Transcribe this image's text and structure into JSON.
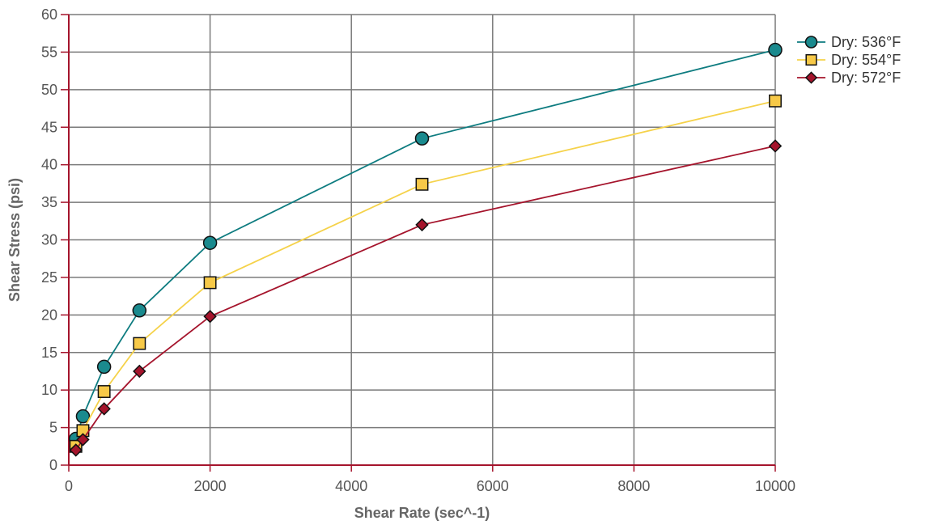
{
  "chart_data": {
    "type": "line",
    "xlabel": "Shear Rate (sec^-1)",
    "ylabel": "Shear Stress (psi)",
    "xlim": [
      0,
      10000
    ],
    "ylim": [
      0,
      60
    ],
    "xticks": [
      0,
      2000,
      4000,
      6000,
      8000,
      10000
    ],
    "yticks": [
      0,
      5,
      10,
      15,
      20,
      25,
      30,
      35,
      40,
      45,
      50,
      55,
      60
    ],
    "grid": true,
    "legend_position": "right",
    "series": [
      {
        "name": "Dry: 536°F",
        "marker": "circle",
        "color": "#0e7c80",
        "marker_fill": "#1a8a8e",
        "x": [
          100,
          200,
          500,
          1000,
          2000,
          5000,
          10000
        ],
        "y": [
          3.5,
          6.5,
          13.1,
          20.6,
          29.6,
          43.5,
          55.3
        ]
      },
      {
        "name": "Dry: 554°F",
        "marker": "square",
        "color": "#f5d24a",
        "marker_fill": "#f7c948",
        "x": [
          100,
          200,
          500,
          1000,
          2000,
          5000,
          10000
        ],
        "y": [
          2.5,
          4.6,
          9.8,
          16.2,
          24.3,
          37.4,
          48.5
        ]
      },
      {
        "name": "Dry: 572°F",
        "marker": "diamond",
        "color": "#a5142c",
        "marker_fill": "#a5142c",
        "x": [
          100,
          200,
          500,
          1000,
          2000,
          5000,
          10000
        ],
        "y": [
          2.0,
          3.4,
          7.5,
          12.5,
          19.8,
          32.0,
          42.5
        ]
      }
    ]
  }
}
